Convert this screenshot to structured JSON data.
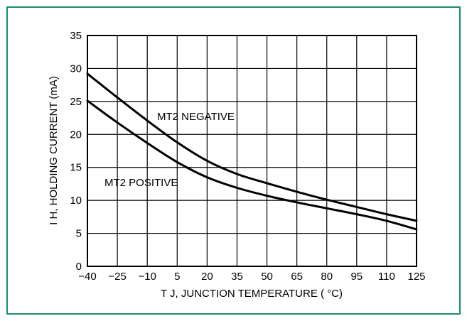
{
  "chart_data": {
    "type": "line",
    "xlabel": "T J, JUNCTION TEMPERATURE ( °C)",
    "ylabel": "I H, HOLDING CURRENT (mA)",
    "xlim": [
      -40,
      125
    ],
    "ylim": [
      0,
      35
    ],
    "x_ticks": [
      "−40",
      "−25",
      "−10",
      "5",
      "20",
      "35",
      "50",
      "65",
      "80",
      "95",
      "110",
      "125"
    ],
    "y_ticks": [
      "0",
      "5",
      "10",
      "15",
      "20",
      "25",
      "30",
      "35"
    ],
    "grid": true,
    "series": [
      {
        "name": "MT2 NEGATIVE",
        "x": [
          -40,
          -25,
          -10,
          5,
          20,
          35,
          50,
          65,
          80,
          95,
          110,
          125
        ],
        "y": [
          29.2,
          25.6,
          22.1,
          18.8,
          16.0,
          14.0,
          12.6,
          11.3,
          10.1,
          9.0,
          7.9,
          6.9
        ]
      },
      {
        "name": "MT2 POSITIVE",
        "x": [
          -40,
          -25,
          -10,
          5,
          20,
          35,
          50,
          65,
          80,
          95,
          110,
          125
        ],
        "y": [
          25.1,
          21.8,
          18.7,
          15.8,
          13.5,
          11.9,
          10.7,
          9.7,
          8.8,
          7.9,
          6.9,
          5.6
        ]
      }
    ],
    "annotations": [
      "MT2 NEGATIVE",
      "MT2 POSITIVE"
    ]
  }
}
